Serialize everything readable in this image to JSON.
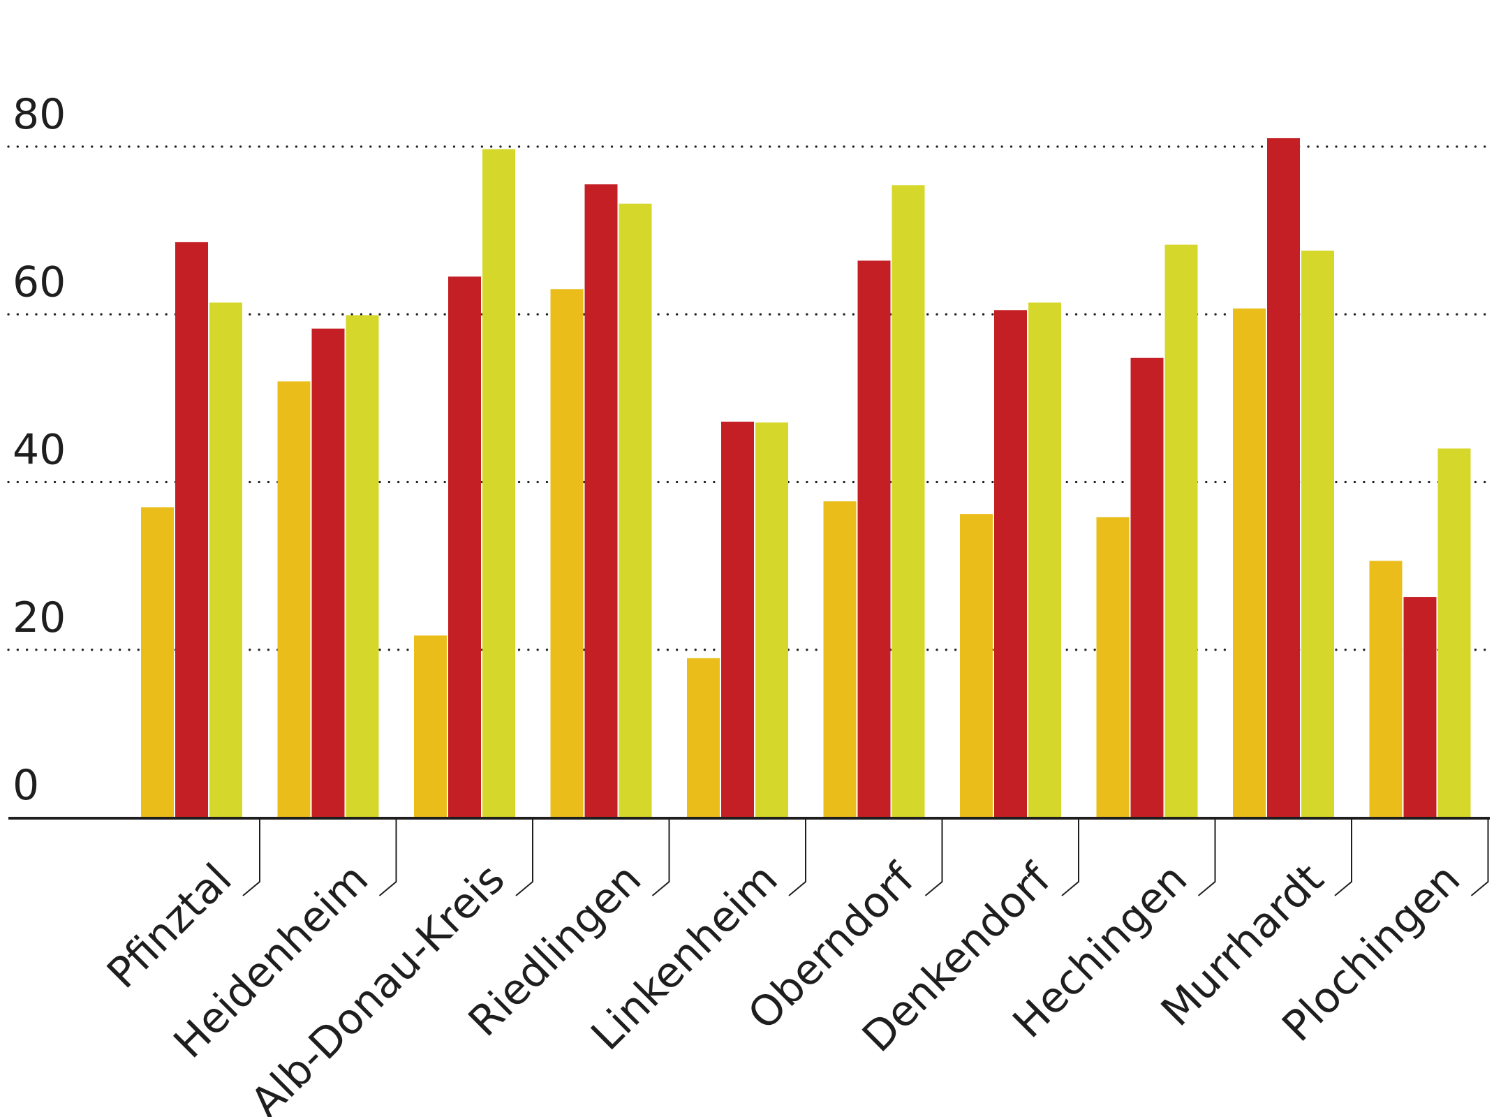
{
  "chart_data": {
    "type": "bar",
    "categories": [
      "Pfinztal",
      "Heidenheim",
      "Alb-Donau-Kreis",
      "Riedlingen",
      "Linkenheim",
      "Oberndorf",
      "Denkendorf",
      "Hechingen",
      "Murrhardt",
      "Plochingen"
    ],
    "series": [
      {
        "color": "#ebbd1b",
        "values": [
          37,
          52,
          21.7,
          63,
          19,
          37.7,
          36.2,
          35.8,
          60.7,
          30.6
        ]
      },
      {
        "color": "#c41f24",
        "values": [
          68.6,
          58.3,
          64.5,
          75.5,
          47.2,
          66.4,
          60.5,
          54.8,
          81,
          26.3
        ]
      },
      {
        "color": "#d6d72b",
        "values": [
          61.4,
          59.9,
          79.7,
          73.2,
          47.1,
          75.4,
          61.4,
          68.3,
          67.6,
          44
        ]
      }
    ],
    "ylim": [
      0,
      80
    ],
    "yticks": [
      0,
      20,
      40,
      60,
      80
    ],
    "grid": true,
    "legend": "none"
  }
}
